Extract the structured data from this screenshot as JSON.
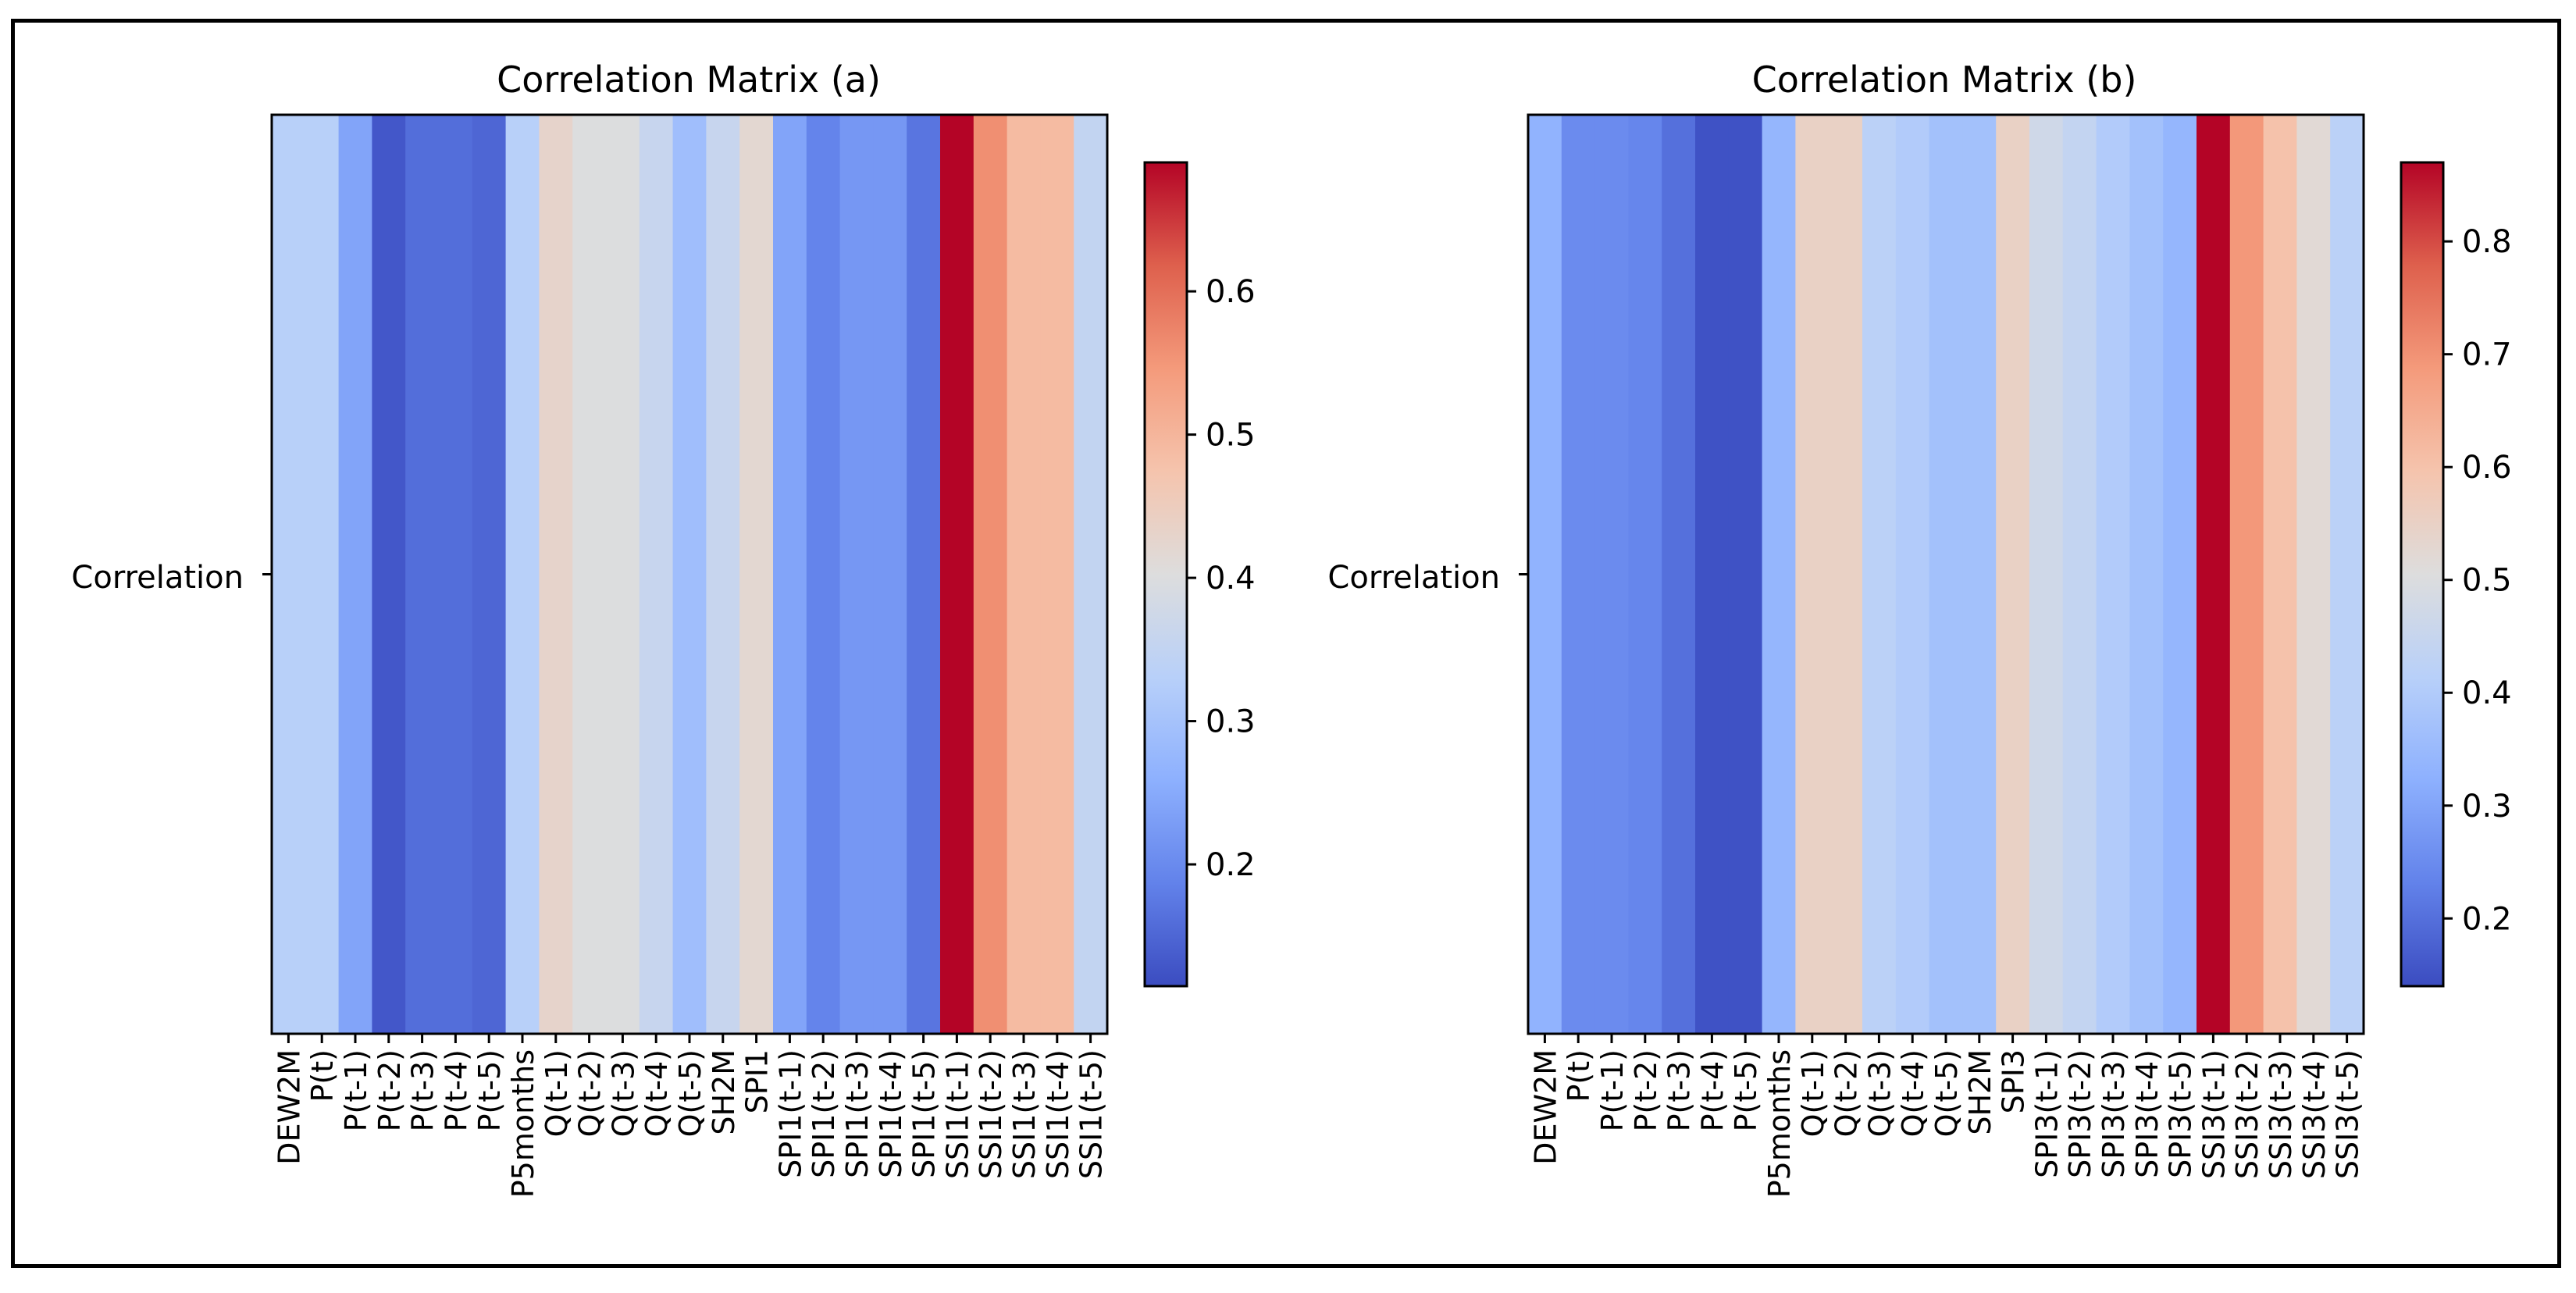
{
  "chart_data": [
    {
      "type": "heatmap",
      "title": "Correlation Matrix (a)",
      "row_labels": [
        "Correlation"
      ],
      "categories": [
        "DEW2M",
        "P(t)",
        "P(t-1)",
        "P(t-2)",
        "P(t-3)",
        "P(t-4)",
        "P(t-5)",
        "P5months",
        "Q(t-1)",
        "Q(t-2)",
        "Q(t-3)",
        "Q(t-4)",
        "Q(t-5)",
        "SH2M",
        "SPI1",
        "SPI1(t-1)",
        "SPI1(t-2)",
        "SPI1(t-3)",
        "SPI1(t-4)",
        "SPI1(t-5)",
        "SSI1(t-1)",
        "SSI1(t-2)",
        "SSI1(t-3)",
        "SSI1(t-4)",
        "SSI1(t-5)"
      ],
      "values": [
        0.33,
        0.33,
        0.24,
        0.13,
        0.16,
        0.16,
        0.15,
        0.33,
        0.43,
        0.4,
        0.4,
        0.36,
        0.29,
        0.36,
        0.42,
        0.24,
        0.19,
        0.22,
        0.22,
        0.17,
        0.69,
        0.56,
        0.49,
        0.49,
        0.35
      ],
      "colorbar": {
        "vmin": 0.115,
        "vmax": 0.69,
        "ticks": [
          0.2,
          0.3,
          0.4,
          0.5,
          0.6
        ],
        "tick_labels": [
          "0.2",
          "0.3",
          "0.4",
          "0.5",
          "0.6"
        ]
      },
      "colormap": "coolwarm"
    },
    {
      "type": "heatmap",
      "title": "Correlation Matrix (b)",
      "row_labels": [
        "Correlation"
      ],
      "categories": [
        "DEW2M",
        "P(t)",
        "P(t-1)",
        "P(t-2)",
        "P(t-3)",
        "P(t-4)",
        "P(t-5)",
        "P5months",
        "Q(t-1)",
        "Q(t-2)",
        "Q(t-3)",
        "Q(t-4)",
        "Q(t-5)",
        "SH2M",
        "SPI3",
        "SPI3(t-1)",
        "SPI3(t-2)",
        "SPI3(t-3)",
        "SPI3(t-4)",
        "SPI3(t-5)",
        "SSI3(t-1)",
        "SSI3(t-2)",
        "SSI3(t-3)",
        "SSI3(t-4)",
        "SSI3(t-5)"
      ],
      "values": [
        0.33,
        0.25,
        0.25,
        0.24,
        0.2,
        0.15,
        0.15,
        0.34,
        0.55,
        0.55,
        0.42,
        0.4,
        0.37,
        0.37,
        0.55,
        0.47,
        0.44,
        0.4,
        0.37,
        0.34,
        0.87,
        0.69,
        0.6,
        0.52,
        0.42
      ],
      "colorbar": {
        "vmin": 0.14,
        "vmax": 0.87,
        "ticks": [
          0.2,
          0.3,
          0.4,
          0.5,
          0.6,
          0.7,
          0.8
        ],
        "tick_labels": [
          "0.2",
          "0.3",
          "0.4",
          "0.5",
          "0.6",
          "0.7",
          "0.8"
        ]
      },
      "colormap": "coolwarm"
    }
  ]
}
